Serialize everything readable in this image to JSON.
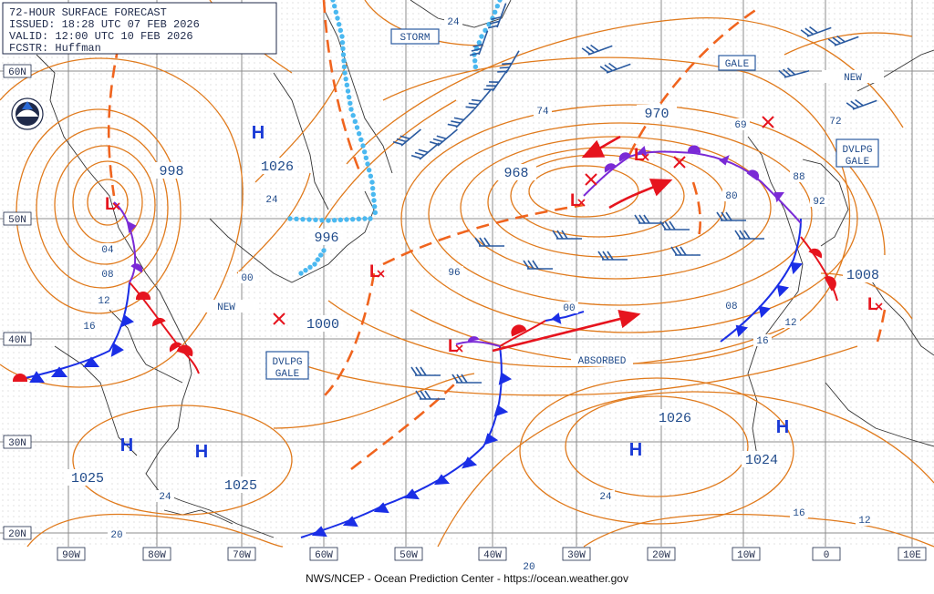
{
  "header": {
    "title": "72-HOUR SURFACE FORECAST",
    "issued": "ISSUED: 18:28 UTC 07 FEB 2026",
    "valid": "VALID:  12:00 UTC 10 FEB 2026",
    "forecaster": "FCSTR:  Huffman"
  },
  "footer": "NWS/NCEP - Ocean Prediction Center - https://ocean.weather.gov",
  "lat_labels": [
    "60N",
    "50N",
    "40N",
    "30N",
    "20N"
  ],
  "lon_labels": [
    "90W",
    "80W",
    "70W",
    "60W",
    "50W",
    "40W",
    "30W",
    "20W",
    "10W",
    "0",
    "10E"
  ],
  "centers": {
    "high_letter": "H",
    "low_letter": "L",
    "pressures": [
      "998",
      "1026",
      "996",
      "1000",
      "968",
      "970",
      "1008",
      "1026",
      "1024",
      "1025",
      "1025"
    ]
  },
  "isobar_labels": [
    "24",
    "74",
    "69",
    "72",
    "88",
    "80",
    "92",
    "24",
    "04",
    "08",
    "12",
    "16",
    "00",
    "96",
    "00",
    "08",
    "12",
    "16",
    "24",
    "24",
    "20",
    "20",
    "16",
    "12"
  ],
  "boxed_labels": [
    "STORM",
    "GALE",
    "NEW",
    "DVLPG",
    "GALE",
    "NEW",
    "DVLPG",
    "GALE",
    "ABSORBED"
  ],
  "colors": {
    "isobar": "#e07a1c",
    "trough": "#f0641e",
    "cold_front": "#1a2ee6",
    "warm_front": "#e6141e",
    "occluded_front": "#7a2ad6",
    "stationary_dots": "#4ab8f0",
    "low_symbol": "#e6141e",
    "wind_barbs": "#2a5aa0",
    "grid": "#808080",
    "coast": "#333333"
  },
  "icons": [
    "noaa-logo-icon",
    "low-pressure-icon",
    "high-pressure-icon",
    "wind-barb-icon",
    "track-arrow-icon"
  ]
}
